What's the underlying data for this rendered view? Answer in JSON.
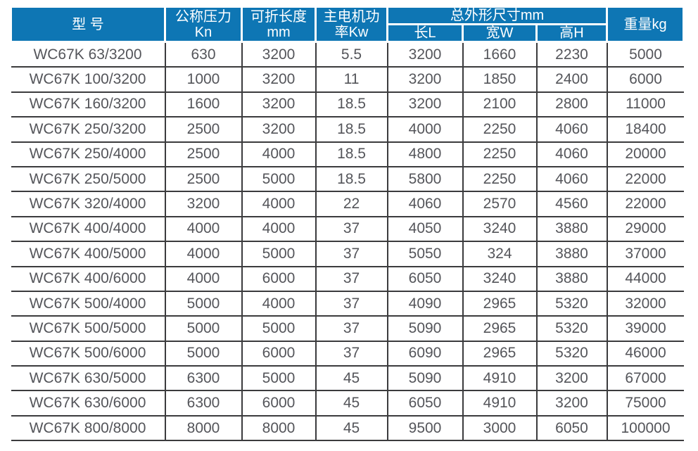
{
  "table": {
    "headers": {
      "model": "型 号",
      "pressure_line1": "公称压力",
      "pressure_line2": "Kn",
      "fold_length_line1": "可折长度",
      "fold_length_line2": "mm",
      "motor_power_line1": "主电机功",
      "motor_power_line2": "率Kw",
      "dimensions_group": "总外形尺寸mm",
      "dim_length": "长L",
      "dim_width": "宽W",
      "dim_height": "高H",
      "weight": "重量kg"
    },
    "columns": [
      "model",
      "pressure_kn",
      "fold_length_mm",
      "motor_power_kw",
      "length_l",
      "width_w",
      "height_h",
      "weight_kg"
    ],
    "rows": [
      [
        "WC67K 63/3200",
        "630",
        "3200",
        "5.5",
        "3200",
        "1660",
        "2230",
        "5000"
      ],
      [
        "WC67K 100/3200",
        "1000",
        "3200",
        "11",
        "3200",
        "1850",
        "2400",
        "6000"
      ],
      [
        "WC67K 160/3200",
        "1600",
        "3200",
        "18.5",
        "3200",
        "2100",
        "2800",
        "11000"
      ],
      [
        "WC67K 250/3200",
        "2500",
        "3200",
        "18.5",
        "4000",
        "2250",
        "4060",
        "18400"
      ],
      [
        "WC67K 250/4000",
        "2500",
        "4000",
        "18.5",
        "4800",
        "2250",
        "4060",
        "20000"
      ],
      [
        "WC67K 250/5000",
        "2500",
        "5000",
        "18.5",
        "5800",
        "2250",
        "4060",
        "22000"
      ],
      [
        "WC67K 320/4000",
        "3200",
        "4000",
        "22",
        "4060",
        "2570",
        "4560",
        "22000"
      ],
      [
        "WC67K 400/4000",
        "4000",
        "4000",
        "37",
        "4050",
        "3240",
        "3880",
        "29000"
      ],
      [
        "WC67K 400/5000",
        "4000",
        "5000",
        "37",
        "5050",
        "324",
        "3880",
        "37000"
      ],
      [
        "WC67K 400/6000",
        "4000",
        "6000",
        "37",
        "6050",
        "3240",
        "3880",
        "44000"
      ],
      [
        "WC67K 500/4000",
        "5000",
        "4000",
        "37",
        "4090",
        "2965",
        "5320",
        "32000"
      ],
      [
        "WC67K 500/5000",
        "5000",
        "5000",
        "37",
        "5090",
        "2965",
        "5320",
        "39000"
      ],
      [
        "WC67K 500/6000",
        "5000",
        "6000",
        "37",
        "6090",
        "2965",
        "5320",
        "46000"
      ],
      [
        "WC67K 630/5000",
        "6300",
        "5000",
        "45",
        "5090",
        "4910",
        "3200",
        "67000"
      ],
      [
        "WC67K 630/6000",
        "6300",
        "6000",
        "45",
        "6050",
        "4910",
        "3200",
        "75000"
      ],
      [
        "WC67K 800/8000",
        "8000",
        "8000",
        "45",
        "9500",
        "3000",
        "6050",
        "100000"
      ]
    ]
  },
  "colors": {
    "header_background": "#0e76b4",
    "header_text": "#ffffff",
    "cell_text": "#54555a",
    "grid_line": "#3b3b3d"
  }
}
